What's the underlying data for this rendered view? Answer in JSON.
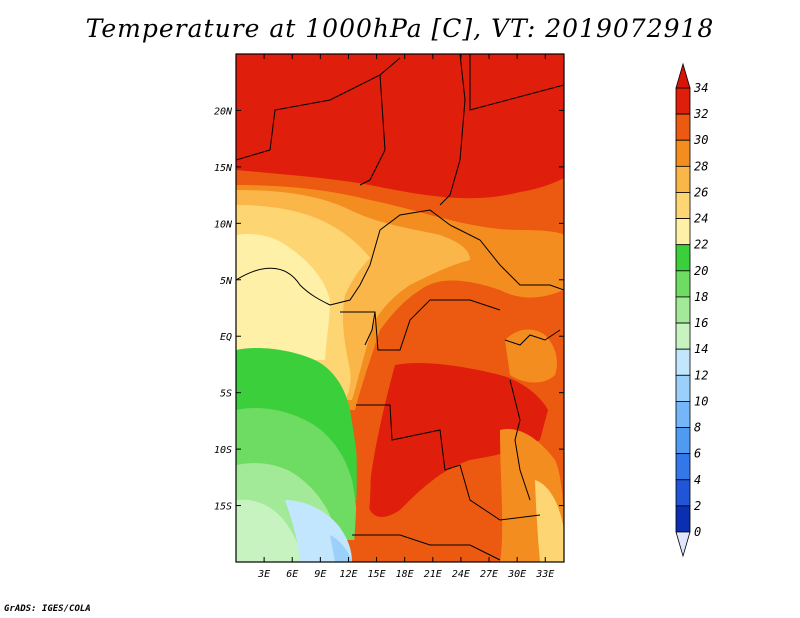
{
  "title": "Temperature at 1000hPa [C], VT: 2019072918",
  "footer": "GrADS: IGES/COLA",
  "map": {
    "lon_range": [
      0,
      35
    ],
    "lat_range": [
      -20,
      25
    ],
    "lon_ticks": [
      "3E",
      "6E",
      "9E",
      "12E",
      "15E",
      "18E",
      "21E",
      "24E",
      "27E",
      "30E",
      "33E"
    ],
    "lat_ticks": [
      "20N",
      "15N",
      "10N",
      "5N",
      "EQ",
      "5S",
      "10S",
      "15S"
    ]
  },
  "colorbar": {
    "labels": [
      "0",
      "2",
      "4",
      "6",
      "8",
      "10",
      "12",
      "14",
      "16",
      "18",
      "20",
      "22",
      "24",
      "26",
      "28",
      "30",
      "32",
      "34"
    ],
    "colors": [
      "#000f7a",
      "#0a2fb0",
      "#1f55d6",
      "#3377e8",
      "#4f9bf2",
      "#74b6f7",
      "#9bd0fb",
      "#c2e6fd",
      "#c6f3c0",
      "#a2ea97",
      "#6edc62",
      "#3ccf3c",
      "#fff0a8",
      "#fdd673",
      "#fbb649",
      "#f48d1f",
      "#ec5a12",
      "#e01f0a"
    ],
    "under_color": "#e0e6ff",
    "over_color": "#d61408"
  },
  "colors": {
    "hot": "#df1e0b",
    "orange_red": "#ec5a12",
    "orange": "#f48d1f",
    "light_orange": "#fbb649",
    "yellow": "#fdd673",
    "pale_yellow": "#fff0a8",
    "green": "#3ccf3c",
    "light_green": "#6edc62",
    "pale_green": "#a2ea97",
    "mint": "#c6f3c0",
    "cyan": "#c2e6fd",
    "blue": "#9bd0fb"
  }
}
